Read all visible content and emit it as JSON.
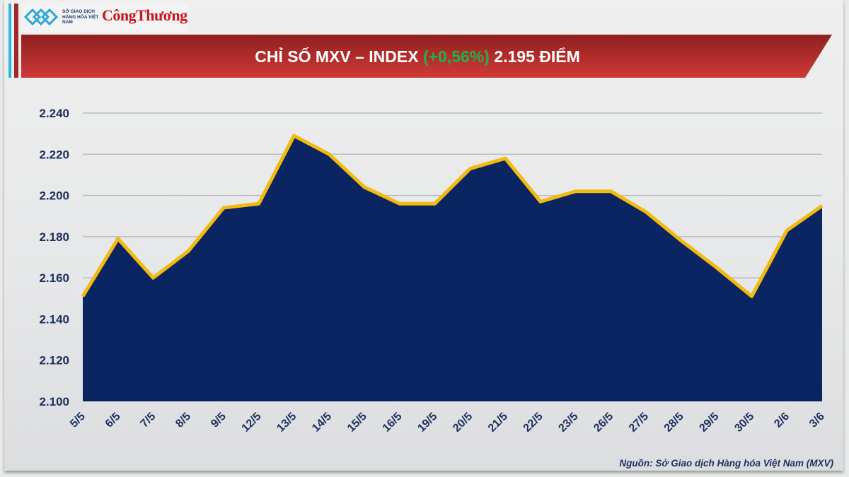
{
  "header": {
    "logo_mxv_text": "SỞ GIAO DỊCH HÀNG HÓA VIỆT NAM",
    "logo_ct_text": "CôngThương",
    "title_prefix": "CHỈ SỐ MXV – INDEX ",
    "title_change": "(+0,56%)",
    "title_suffix": " 2.195 ĐIỂM"
  },
  "colors": {
    "banner": "#b52b2b",
    "change": "#22b14c",
    "line": "#f2b90f",
    "area_top": "#8b9bb6",
    "area_bottom": "#0a2561",
    "text": "#1c2f5e"
  },
  "chart_data": {
    "type": "area",
    "categories": [
      "5/5",
      "6/5",
      "7/5",
      "8/5",
      "9/5",
      "12/5",
      "13/5",
      "14/5",
      "15/5",
      "16/5",
      "19/5",
      "20/5",
      "21/5",
      "22/5",
      "23/5",
      "26/5",
      "27/5",
      "28/5",
      "29/5",
      "30/5",
      "2/6",
      "3/6"
    ],
    "values": [
      2151,
      2179,
      2160,
      2173,
      2194,
      2196,
      2229,
      2220,
      2204,
      2196,
      2196,
      2213,
      2218,
      2197,
      2202,
      2202,
      2192,
      2178,
      2165,
      2151,
      2183,
      2195
    ],
    "ylim": [
      2100,
      2240
    ],
    "yticks": [
      "2.100",
      "2.120",
      "2.140",
      "2.160",
      "2.180",
      "2.200",
      "2.220",
      "2.240"
    ],
    "ytick_values": [
      2100,
      2120,
      2140,
      2160,
      2180,
      2200,
      2220,
      2240
    ],
    "grid": true,
    "xlabel": "",
    "ylabel": ""
  },
  "footer": {
    "source": "Nguồn: Sở Giao dịch Hàng hóa Việt Nam (MXV)"
  }
}
